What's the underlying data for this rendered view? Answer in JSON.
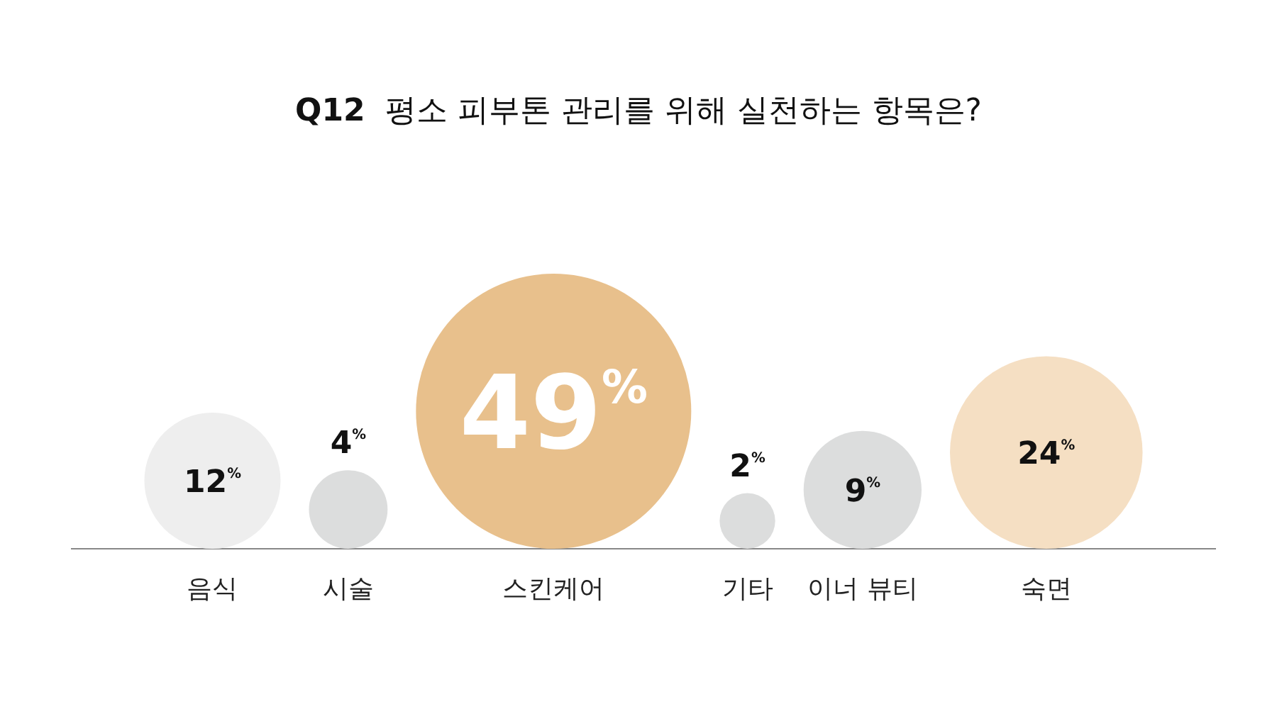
{
  "chart_data": {
    "type": "other",
    "title": "Q12  평소 피부톤 관리를 위해 실천하는 항목은?",
    "categories": [
      "음식",
      "시술",
      "스킨케어",
      "기타",
      "이너 뷰티",
      "숙면"
    ],
    "values": [
      12,
      4,
      49,
      2,
      9,
      24
    ],
    "value_labels": [
      "12$^{%}$",
      "4$^{%}$",
      "49$^{%}$",
      "2$^{%}$",
      "9$^{%}$",
      "24$^{%}$"
    ],
    "colors": [
      "#eeeeee",
      "#dcdddd",
      "#e8c08c",
      "#dcdddd",
      "#dcdddd",
      "#f5dfc3"
    ]
  }
}
